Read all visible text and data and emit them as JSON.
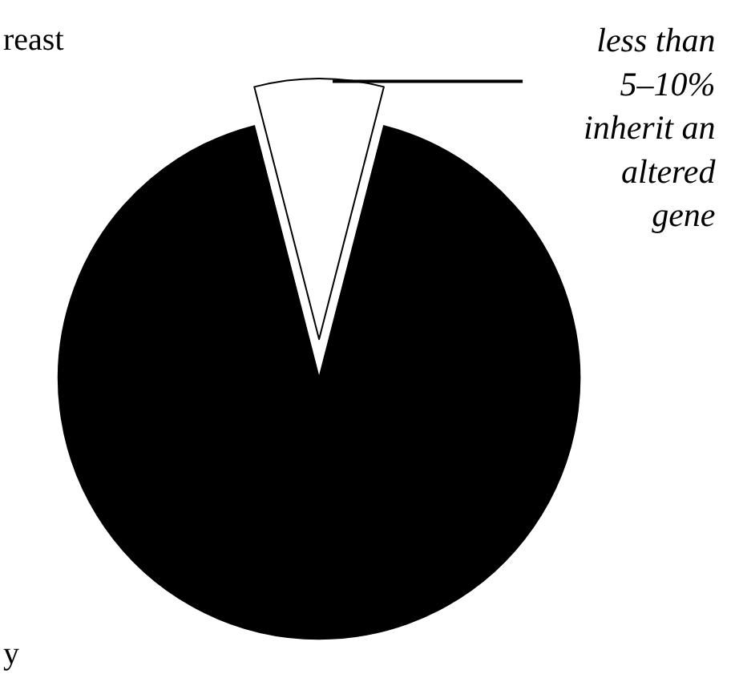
{
  "chart_data": {
    "type": "pie",
    "categories": [
      null,
      null
    ],
    "values": [
      8,
      92
    ],
    "colors": [
      "#ffffff",
      "#000000"
    ],
    "annotations": [
      "less than\n5–10%\ninherit an\naltered\ngene",
      "reast",
      "y"
    ]
  }
}
